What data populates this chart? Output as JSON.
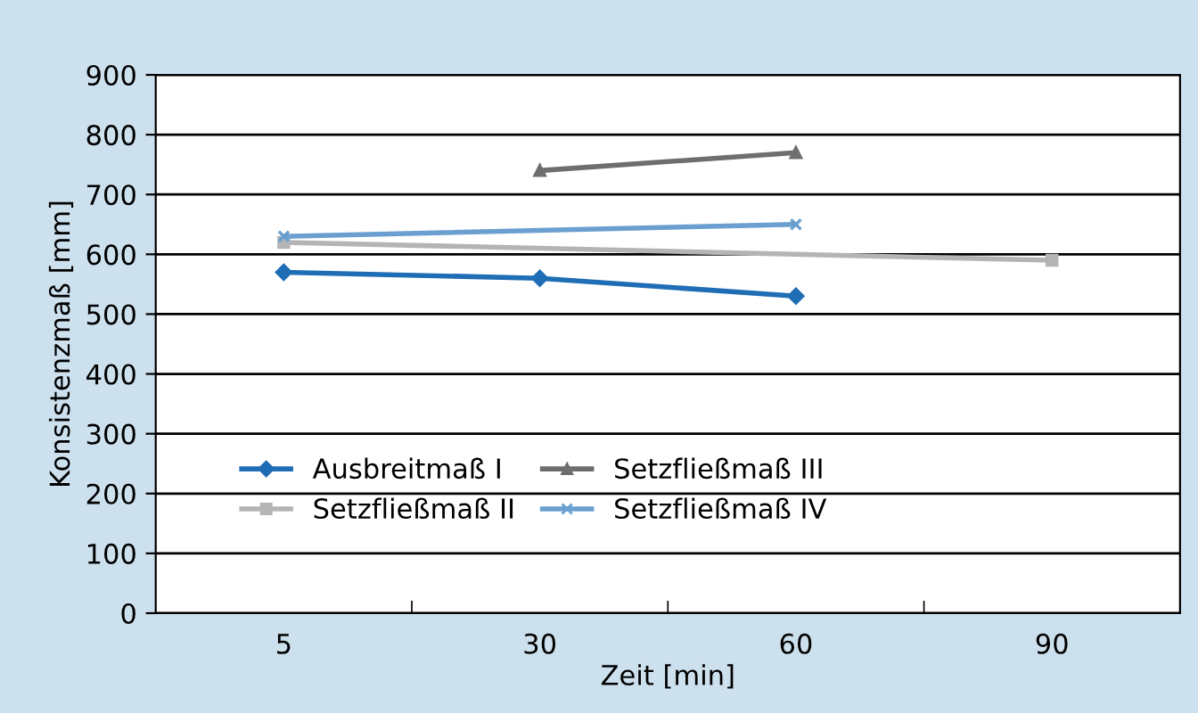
{
  "chart_data": {
    "type": "line",
    "xlabel": "Zeit [min]",
    "ylabel": "Konsistenzmaß [mm]",
    "categories": [
      "5",
      "30",
      "60",
      "90"
    ],
    "series": [
      {
        "name": "Ausbreitmaß I",
        "color": "#1f6db5",
        "marker": "diamond",
        "values": [
          570,
          560,
          530,
          null
        ]
      },
      {
        "name": "Setzfließmaß II",
        "color": "#b4b4b4",
        "marker": "square",
        "values": [
          620,
          null,
          null,
          590
        ]
      },
      {
        "name": "Setzfließmaß III",
        "color": "#6e6e6e",
        "marker": "triangle",
        "values": [
          null,
          740,
          770,
          null
        ]
      },
      {
        "name": "Setzfließmaß IV",
        "color": "#6a9fd0",
        "marker": "cross",
        "values": [
          630,
          null,
          650,
          null
        ]
      }
    ],
    "ylim": [
      0,
      900
    ],
    "yticks": [
      0,
      100,
      200,
      300,
      400,
      500,
      600,
      700,
      800,
      900
    ],
    "grid": "y",
    "legend": "bottom left",
    "line_style": "solid"
  }
}
